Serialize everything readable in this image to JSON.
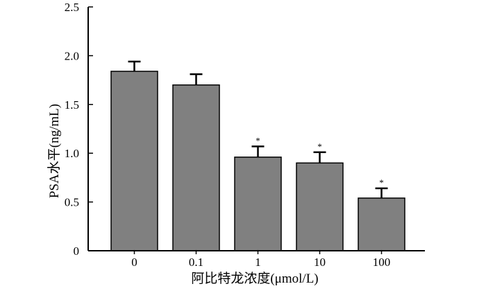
{
  "chart_data": {
    "type": "bar",
    "title": "",
    "xlabel": "阿比特龙浓度(μmol/L)",
    "ylabel": "PSA水平(ng/mL)",
    "categories": [
      "0",
      "0.1",
      "1",
      "10",
      "100"
    ],
    "series": [
      {
        "values": [
          1.84,
          1.7,
          0.96,
          0.9,
          0.54
        ],
        "errors": [
          0.1,
          0.11,
          0.11,
          0.11,
          0.1
        ],
        "significance": [
          "",
          "",
          "*",
          "*",
          "*"
        ]
      }
    ],
    "ylim": [
      0,
      2.5
    ],
    "yticks": [
      "0",
      "0.5",
      "1.0",
      "1.5",
      "2.0",
      "2.5"
    ],
    "grid": false,
    "colors": {
      "bar_fill": "#808080",
      "bar_stroke": "#000000",
      "axis": "#000000"
    }
  }
}
